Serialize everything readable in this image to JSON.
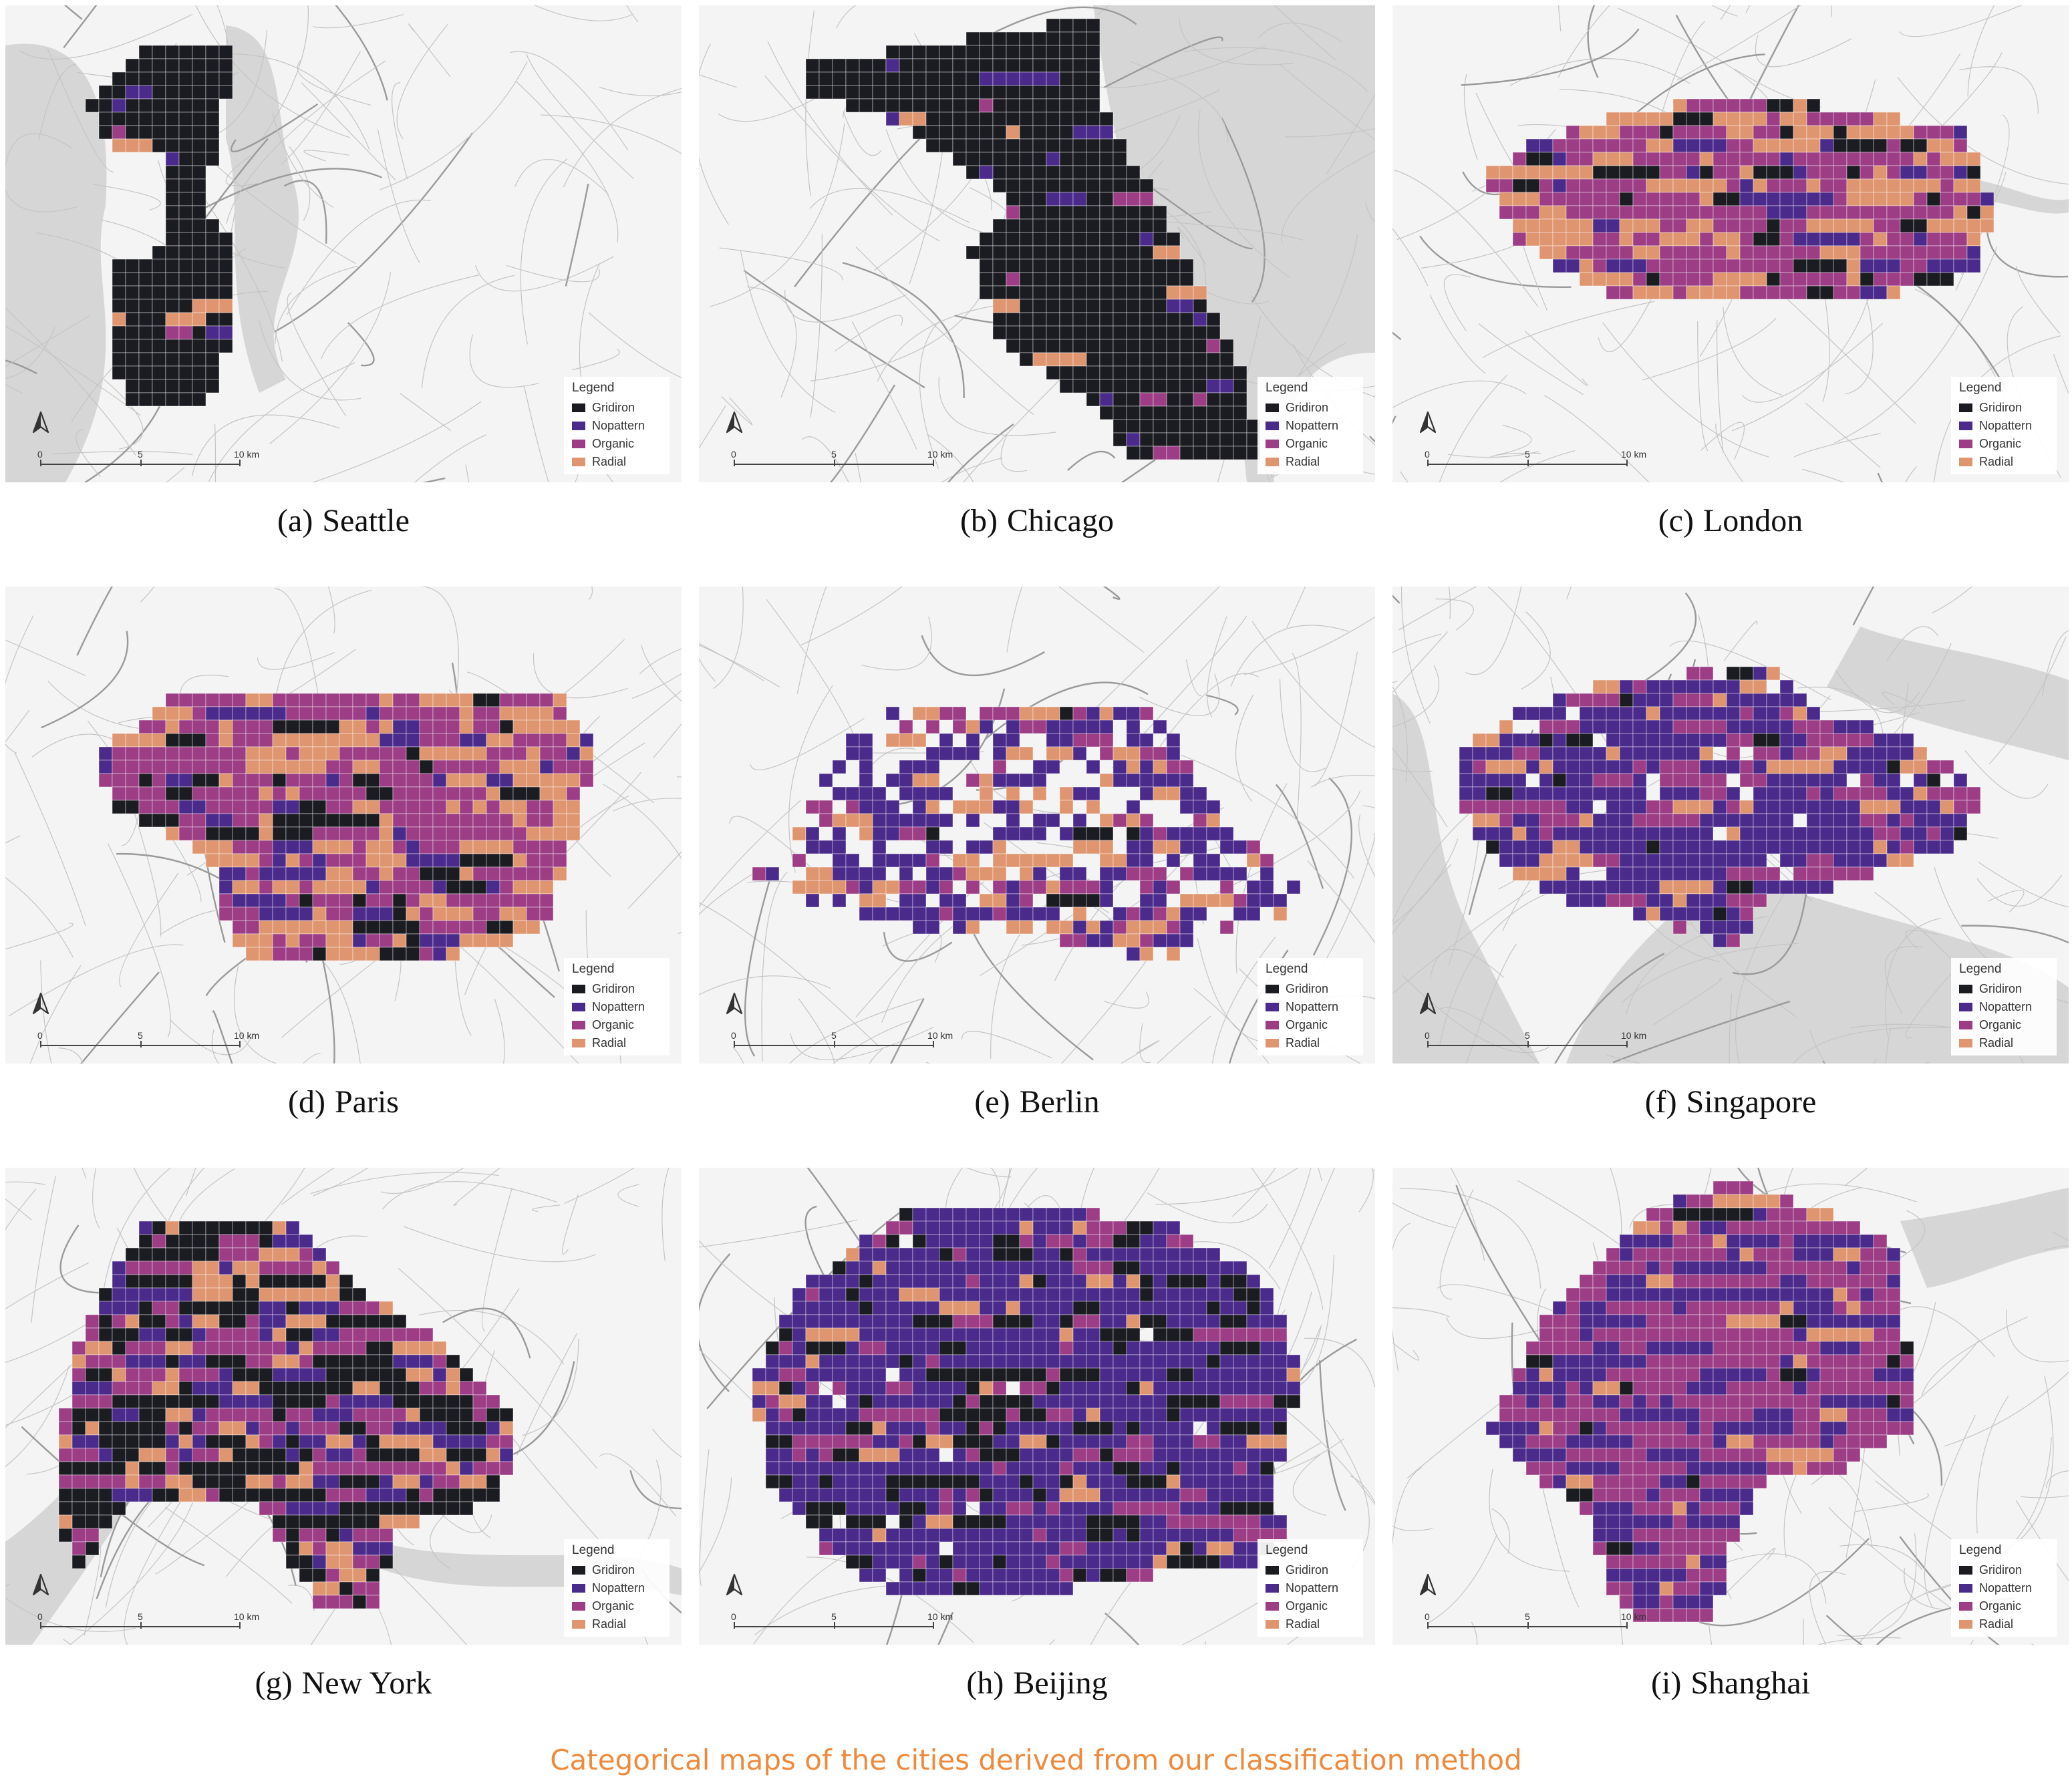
{
  "figure_title": "Categorical maps of the cities derived from our classification method",
  "legend": {
    "title": "Legend",
    "items": [
      {
        "label": "Gridiron",
        "color": "#1b1b22"
      },
      {
        "label": "Nopattern",
        "color": "#4a2a8a"
      },
      {
        "label": "Organic",
        "color": "#9c3d86"
      },
      {
        "label": "Radial",
        "color": "#df9670"
      }
    ]
  },
  "scale_labels": [
    "0",
    "5",
    "10 km"
  ],
  "panels": [
    {
      "label": "(a)",
      "city": "Seattle"
    },
    {
      "label": "(b)",
      "city": "Chicago"
    },
    {
      "label": "(c)",
      "city": "London"
    },
    {
      "label": "(d)",
      "city": "Paris"
    },
    {
      "label": "(e)",
      "city": "Berlin"
    },
    {
      "label": "(f)",
      "city": "Singapore"
    },
    {
      "label": "(g)",
      "city": "New York"
    },
    {
      "label": "(h)",
      "city": "Beijing"
    },
    {
      "label": "(i)",
      "city": "Shanghai"
    }
  ]
}
